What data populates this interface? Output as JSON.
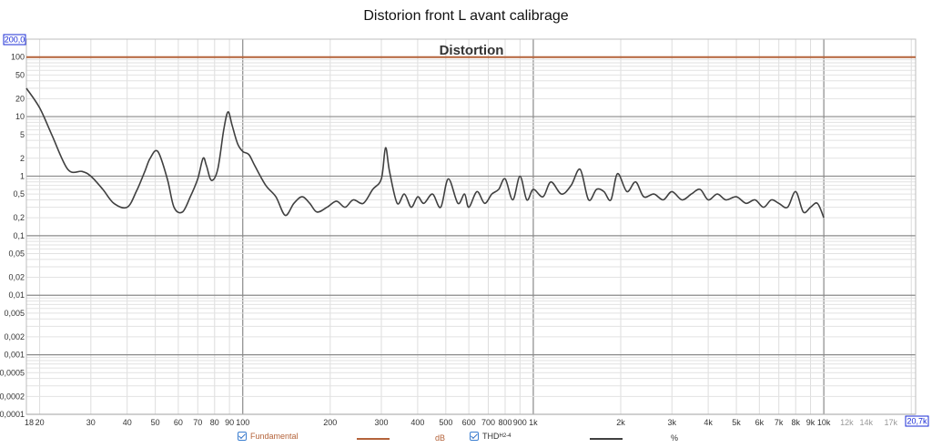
{
  "window": {
    "title": "Distorion front L avant calibrage"
  },
  "chart_data": {
    "type": "line",
    "title": "Distortion",
    "x_scale": "log",
    "y_scale": "log",
    "xlim": [
      18,
      20700
    ],
    "ylim": [
      0.0001,
      200
    ],
    "grid": true,
    "x_tick_labels": [
      {
        "v": 18,
        "t": "18"
      },
      {
        "v": 20,
        "t": "20"
      },
      {
        "v": 30,
        "t": "30"
      },
      {
        "v": 40,
        "t": "40"
      },
      {
        "v": 50,
        "t": "50"
      },
      {
        "v": 60,
        "t": "60"
      },
      {
        "v": 70,
        "t": "70"
      },
      {
        "v": 80,
        "t": "80"
      },
      {
        "v": 90,
        "t": "90"
      },
      {
        "v": 100,
        "t": "100"
      },
      {
        "v": 200,
        "t": "200"
      },
      {
        "v": 300,
        "t": "300"
      },
      {
        "v": 400,
        "t": "400"
      },
      {
        "v": 500,
        "t": "500"
      },
      {
        "v": 600,
        "t": "600"
      },
      {
        "v": 700,
        "t": "700"
      },
      {
        "v": 800,
        "t": "800"
      },
      {
        "v": 900,
        "t": "900"
      },
      {
        "v": 1000,
        "t": "1k"
      },
      {
        "v": 2000,
        "t": "2k"
      },
      {
        "v": 3000,
        "t": "3k"
      },
      {
        "v": 4000,
        "t": "4k"
      },
      {
        "v": 5000,
        "t": "5k"
      },
      {
        "v": 6000,
        "t": "6k"
      },
      {
        "v": 7000,
        "t": "7k"
      },
      {
        "v": 8000,
        "t": "8k"
      },
      {
        "v": 9000,
        "t": "9k"
      },
      {
        "v": 10000,
        "t": "10k"
      },
      {
        "v": 12000,
        "t": "12k"
      },
      {
        "v": 14000,
        "t": "14k"
      },
      {
        "v": 17000,
        "t": "17k"
      }
    ],
    "x_max_label": "20,7k",
    "y_max_label": "200,0",
    "y_tick_labels": [
      {
        "v": 100,
        "t": "100"
      },
      {
        "v": 50,
        "t": "50"
      },
      {
        "v": 20,
        "t": "20"
      },
      {
        "v": 10,
        "t": "10"
      },
      {
        "v": 5,
        "t": "5"
      },
      {
        "v": 2,
        "t": "2"
      },
      {
        "v": 1,
        "t": "1"
      },
      {
        "v": 0.5,
        "t": "0,5"
      },
      {
        "v": 0.2,
        "t": "0,2"
      },
      {
        "v": 0.1,
        "t": "0,1"
      },
      {
        "v": 0.05,
        "t": "0,05"
      },
      {
        "v": 0.02,
        "t": "0,02"
      },
      {
        "v": 0.01,
        "t": "0,01"
      },
      {
        "v": 0.005,
        "t": "0,005"
      },
      {
        "v": 0.002,
        "t": "0,002"
      },
      {
        "v": 0.001,
        "t": "0,001"
      },
      {
        "v": 0.0005,
        "t": "0,0005"
      },
      {
        "v": 0.0002,
        "t": "0,0002"
      },
      {
        "v": 0.0001,
        "t": "0,0001"
      }
    ],
    "series": [
      {
        "name": "Fundamental",
        "color": "#b4633a",
        "x": [
          18,
          20700
        ],
        "y": [
          100,
          100
        ]
      },
      {
        "name": "THD H2-4",
        "color": "#404040",
        "x": [
          18,
          20,
          22,
          25,
          28,
          30,
          33,
          36,
          40,
          43,
          46,
          48,
          51,
          55,
          58,
          62,
          66,
          70,
          73,
          75,
          78,
          82,
          86,
          89,
          92,
          96,
          100,
          105,
          110,
          120,
          130,
          140,
          150,
          160,
          170,
          180,
          195,
          210,
          225,
          240,
          260,
          280,
          300,
          310,
          320,
          340,
          360,
          380,
          400,
          420,
          450,
          480,
          510,
          550,
          580,
          600,
          640,
          680,
          720,
          760,
          800,
          850,
          900,
          950,
          1000,
          1080,
          1150,
          1250,
          1350,
          1450,
          1550,
          1650,
          1750,
          1850,
          1950,
          2100,
          2250,
          2400,
          2600,
          2800,
          3000,
          3250,
          3500,
          3750,
          4000,
          4300,
          4600,
          5000,
          5400,
          5800,
          6200,
          6600,
          7000,
          7500,
          8000,
          8500,
          9000,
          9500,
          10000
        ],
        "y": [
          30,
          14,
          5,
          1.3,
          1.2,
          1.0,
          0.6,
          0.35,
          0.3,
          0.55,
          1.2,
          2.0,
          2.6,
          0.9,
          0.3,
          0.25,
          0.45,
          0.9,
          2.0,
          1.5,
          0.85,
          1.3,
          6.0,
          12,
          7.0,
          3.5,
          2.6,
          2.3,
          1.5,
          0.7,
          0.45,
          0.22,
          0.35,
          0.45,
          0.35,
          0.25,
          0.3,
          0.38,
          0.3,
          0.4,
          0.35,
          0.6,
          0.9,
          3.0,
          1.2,
          0.35,
          0.5,
          0.3,
          0.45,
          0.35,
          0.5,
          0.3,
          0.9,
          0.35,
          0.5,
          0.3,
          0.55,
          0.35,
          0.5,
          0.6,
          0.9,
          0.4,
          1.0,
          0.4,
          0.6,
          0.45,
          0.8,
          0.5,
          0.7,
          1.3,
          0.4,
          0.6,
          0.55,
          0.4,
          1.1,
          0.55,
          0.8,
          0.45,
          0.5,
          0.4,
          0.55,
          0.4,
          0.5,
          0.6,
          0.4,
          0.5,
          0.4,
          0.45,
          0.35,
          0.4,
          0.3,
          0.4,
          0.35,
          0.3,
          0.55,
          0.25,
          0.3,
          0.35,
          0.2
        ]
      }
    ]
  },
  "legend": [
    {
      "label": "Fundamental",
      "unit": "dB",
      "checked": true,
      "color": "#b4633a"
    },
    {
      "label": "THD",
      "sub": "H2-4",
      "unit": "%",
      "checked": true,
      "color": "#404040"
    }
  ]
}
